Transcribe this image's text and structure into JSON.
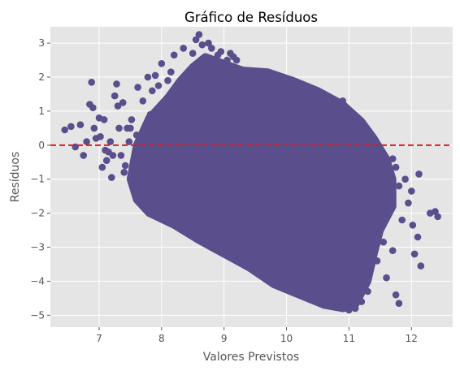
{
  "chart_data": {
    "type": "scatter",
    "title": "Gráfico de Resíduos",
    "xlabel": "Valores Previstos",
    "ylabel": "Resíduos",
    "xlim": [
      6.22,
      12.66
    ],
    "ylim": [
      -5.35,
      3.48
    ],
    "x_ticks": [
      7,
      8,
      9,
      10,
      11,
      12
    ],
    "y_ticks": [
      3,
      2,
      1,
      0,
      -1,
      -2,
      -3,
      -4,
      -5
    ],
    "x_tick_labels": [
      "7",
      "8",
      "9",
      "10",
      "11",
      "12"
    ],
    "y_tick_labels": [
      "3",
      "2",
      "1",
      "0",
      "−1",
      "−2",
      "−3",
      "−4",
      "−5"
    ],
    "grid": true,
    "reference_line": {
      "y": 0,
      "color": "#e41a1c",
      "style": "dashed"
    },
    "point_color": "#5a4f8c",
    "background_color": "#e5e5e5",
    "dense_region": {
      "description": "high-density band of residuals",
      "polygon": [
        [
          7.6,
          0.0
        ],
        [
          7.8,
          0.8
        ],
        [
          8.1,
          1.4
        ],
        [
          8.3,
          1.9
        ],
        [
          8.5,
          2.3
        ],
        [
          8.7,
          2.6
        ],
        [
          9.0,
          2.4
        ],
        [
          9.3,
          2.2
        ],
        [
          9.7,
          2.15
        ],
        [
          10.1,
          1.9
        ],
        [
          10.5,
          1.6
        ],
        [
          10.9,
          1.2
        ],
        [
          11.2,
          0.7
        ],
        [
          11.4,
          0.2
        ],
        [
          11.6,
          -0.4
        ],
        [
          11.7,
          -1.0
        ],
        [
          11.7,
          -1.8
        ],
        [
          11.5,
          -2.5
        ],
        [
          11.4,
          -3.2
        ],
        [
          11.3,
          -4.0
        ],
        [
          11.1,
          -4.7
        ],
        [
          10.9,
          -4.8
        ],
        [
          10.6,
          -4.7
        ],
        [
          10.2,
          -4.4
        ],
        [
          9.8,
          -4.1
        ],
        [
          9.4,
          -3.6
        ],
        [
          9.0,
          -3.2
        ],
        [
          8.6,
          -2.8
        ],
        [
          8.2,
          -2.35
        ],
        [
          7.8,
          -2.0
        ],
        [
          7.6,
          -1.6
        ],
        [
          7.5,
          -1.0
        ]
      ]
    },
    "points": [
      [
        6.45,
        0.45
      ],
      [
        6.55,
        0.55
      ],
      [
        6.62,
        -0.05
      ],
      [
        6.7,
        0.6
      ],
      [
        6.75,
        -0.3
      ],
      [
        6.8,
        0.1
      ],
      [
        6.85,
        1.2
      ],
      [
        6.88,
        1.85
      ],
      [
        6.9,
        1.1
      ],
      [
        6.92,
        0.5
      ],
      [
        6.95,
        0.2
      ],
      [
        7.0,
        0.8
      ],
      [
        7.02,
        0.25
      ],
      [
        7.05,
        -0.65
      ],
      [
        7.08,
        0.75
      ],
      [
        7.1,
        -0.15
      ],
      [
        7.12,
        -0.45
      ],
      [
        7.15,
        -0.2
      ],
      [
        7.18,
        0.1
      ],
      [
        7.2,
        -0.95
      ],
      [
        7.22,
        -0.3
      ],
      [
        7.25,
        1.45
      ],
      [
        7.28,
        1.8
      ],
      [
        7.3,
        1.15
      ],
      [
        7.32,
        0.5
      ],
      [
        7.35,
        -0.3
      ],
      [
        7.38,
        1.25
      ],
      [
        7.4,
        -0.8
      ],
      [
        7.42,
        -0.6
      ],
      [
        7.45,
        0.5
      ],
      [
        7.48,
        0.1
      ],
      [
        7.5,
        0.5
      ],
      [
        7.52,
        0.75
      ],
      [
        7.55,
        -0.45
      ],
      [
        7.58,
        -1.3
      ],
      [
        7.6,
        0.3
      ],
      [
        7.62,
        1.7
      ],
      [
        7.7,
        1.3
      ],
      [
        7.72,
        -1.3
      ],
      [
        7.78,
        2.0
      ],
      [
        7.82,
        0.9
      ],
      [
        7.85,
        1.6
      ],
      [
        7.9,
        2.05
      ],
      [
        7.95,
        1.75
      ],
      [
        8.0,
        2.4
      ],
      [
        8.1,
        1.9
      ],
      [
        8.15,
        2.15
      ],
      [
        8.2,
        2.65
      ],
      [
        8.35,
        2.85
      ],
      [
        8.5,
        2.7
      ],
      [
        8.55,
        3.1
      ],
      [
        8.6,
        3.25
      ],
      [
        8.65,
        2.95
      ],
      [
        8.75,
        3.0
      ],
      [
        8.8,
        2.85
      ],
      [
        8.9,
        2.65
      ],
      [
        8.95,
        2.75
      ],
      [
        9.05,
        2.5
      ],
      [
        9.1,
        2.7
      ],
      [
        9.15,
        2.6
      ],
      [
        9.2,
        2.5
      ],
      [
        10.9,
        1.3
      ],
      [
        11.0,
        0.9
      ],
      [
        11.1,
        0.6
      ],
      [
        11.25,
        0.45
      ],
      [
        11.3,
        0.2
      ],
      [
        11.45,
        -0.1
      ],
      [
        11.5,
        -0.4
      ],
      [
        11.55,
        -0.7
      ],
      [
        11.6,
        -1.4
      ],
      [
        11.7,
        -0.4
      ],
      [
        11.75,
        -0.65
      ],
      [
        11.8,
        -1.2
      ],
      [
        11.85,
        -2.2
      ],
      [
        11.9,
        -1.0
      ],
      [
        11.95,
        -1.7
      ],
      [
        12.0,
        -1.35
      ],
      [
        12.02,
        -2.35
      ],
      [
        12.05,
        -3.2
      ],
      [
        12.1,
        -2.7
      ],
      [
        12.12,
        -0.85
      ],
      [
        12.15,
        -3.55
      ],
      [
        12.3,
        -2.0
      ],
      [
        12.38,
        -1.95
      ],
      [
        12.42,
        -2.1
      ],
      [
        11.7,
        -3.1
      ],
      [
        11.75,
        -4.4
      ],
      [
        11.8,
        -4.65
      ],
      [
        11.6,
        -3.9
      ],
      [
        11.45,
        -3.4
      ],
      [
        11.55,
        -2.85
      ],
      [
        11.4,
        -2.6
      ],
      [
        11.3,
        -4.3
      ],
      [
        11.2,
        -4.6
      ],
      [
        11.1,
        -4.8
      ],
      [
        11.0,
        -4.85
      ],
      [
        10.8,
        -4.7
      ]
    ]
  }
}
